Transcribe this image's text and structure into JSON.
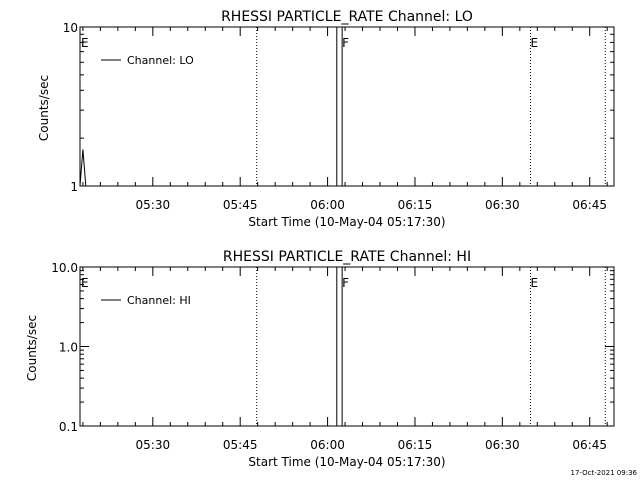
{
  "footer": {
    "timestamp": "17-Oct-2021 09:36"
  },
  "chart_data": [
    {
      "type": "line",
      "title": "RHESSI PARTICLE_RATE Channel: LO",
      "xlabel": "Start Time (10-May-04 05:17:30)",
      "ylabel": "Counts/sec",
      "yscale": "log",
      "ylim": [
        1,
        10
      ],
      "y_ticks": [
        1,
        10
      ],
      "y_tick_labels": [
        "1",
        "10"
      ],
      "x_range_seconds": [
        0,
        5500
      ],
      "x_tick_seconds": [
        750,
        1650,
        2550,
        3450,
        4350,
        5250
      ],
      "x_tick_labels": [
        "05:30",
        "05:45",
        "06:00",
        "06:15",
        "06:30",
        "06:45"
      ],
      "legend": {
        "label": "Channel: LO",
        "position": "top-left"
      },
      "series": [
        {
          "name": "Channel: LO",
          "x": [
            0,
            30,
            60
          ],
          "y": [
            1.0,
            1.7,
            1.0
          ]
        }
      ],
      "markers": [
        {
          "label": "E",
          "x_seconds": 10,
          "style": "none"
        },
        {
          "label": "",
          "x_seconds": 1820,
          "style": "dotted"
        },
        {
          "label": "",
          "x_seconds": 2645,
          "style": "solid"
        },
        {
          "label": "F",
          "x_seconds": 2700,
          "style": "solid"
        },
        {
          "label": "E",
          "x_seconds": 4640,
          "style": "dotted"
        },
        {
          "label": "",
          "x_seconds": 5410,
          "style": "dotted"
        }
      ]
    },
    {
      "type": "line",
      "title": "RHESSI PARTICLE_RATE Channel: HI",
      "xlabel": "Start Time (10-May-04 05:17:30)",
      "ylabel": "Counts/sec",
      "yscale": "log",
      "ylim": [
        0.1,
        10
      ],
      "y_ticks": [
        0.1,
        1,
        10
      ],
      "y_tick_labels": [
        "0.1",
        "1.0",
        "10.0"
      ],
      "x_range_seconds": [
        0,
        5500
      ],
      "x_tick_seconds": [
        750,
        1650,
        2550,
        3450,
        4350,
        5250
      ],
      "x_tick_labels": [
        "05:30",
        "05:45",
        "06:00",
        "06:15",
        "06:30",
        "06:45"
      ],
      "legend": {
        "label": "Channel: HI",
        "position": "top-left"
      },
      "series": [
        {
          "name": "Channel: HI",
          "x": [],
          "y": []
        }
      ],
      "markers": [
        {
          "label": "E",
          "x_seconds": 10,
          "style": "none"
        },
        {
          "label": "",
          "x_seconds": 1820,
          "style": "dotted"
        },
        {
          "label": "",
          "x_seconds": 2645,
          "style": "solid"
        },
        {
          "label": "F",
          "x_seconds": 2700,
          "style": "solid"
        },
        {
          "label": "E",
          "x_seconds": 4640,
          "style": "dotted"
        },
        {
          "label": "",
          "x_seconds": 5410,
          "style": "dotted"
        }
      ]
    }
  ]
}
